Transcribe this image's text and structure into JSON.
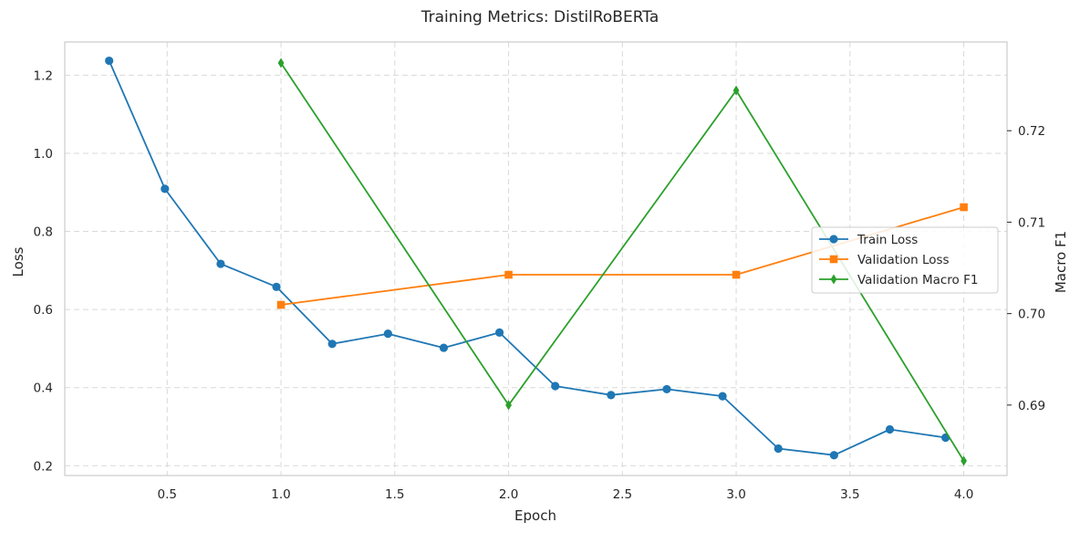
{
  "chart_data": {
    "type": "line",
    "title": "Training Metrics: DistilRoBERTa",
    "xlabel": "Epoch",
    "ylabel": "Loss",
    "y2label": "Macro F1",
    "xlim": [
      0.05,
      4.19
    ],
    "ylim": [
      0.175,
      1.285
    ],
    "y2lim": [
      0.6823,
      0.7297
    ],
    "xticks": [
      0.5,
      1.0,
      1.5,
      2.0,
      2.5,
      3.0,
      3.5,
      4.0
    ],
    "xtick_labels": [
      "0.5",
      "1.0",
      "1.5",
      "2.0",
      "2.5",
      "3.0",
      "3.5",
      "4.0"
    ],
    "yticks": [
      0.2,
      0.4,
      0.6,
      0.8,
      1.0,
      1.2
    ],
    "ytick_labels": [
      "0.2",
      "0.4",
      "0.6",
      "0.8",
      "1.0",
      "1.2"
    ],
    "y2ticks": [
      0.69,
      0.7,
      0.71,
      0.72
    ],
    "y2tick_labels": [
      "0.69",
      "0.70",
      "0.71",
      "0.72"
    ],
    "grid": true,
    "legend_position": "center-right",
    "series": [
      {
        "name": "Train Loss",
        "axis": "left",
        "marker": "circle",
        "color": "#1f77b4",
        "x": [
          0.245,
          0.49,
          0.735,
          0.98,
          1.225,
          1.47,
          1.715,
          1.96,
          2.205,
          2.45,
          2.695,
          2.94,
          3.185,
          3.43,
          3.675,
          3.92
        ],
        "values": [
          1.237,
          0.909,
          0.717,
          0.658,
          0.512,
          0.538,
          0.502,
          0.541,
          0.404,
          0.381,
          0.396,
          0.378,
          0.244,
          0.227,
          0.293,
          0.272
        ]
      },
      {
        "name": "Validation Loss",
        "axis": "left",
        "marker": "square",
        "color": "#ff7f0e",
        "x": [
          1.0,
          2.0,
          3.0,
          4.0
        ],
        "values": [
          0.612,
          0.689,
          0.689,
          0.862
        ]
      },
      {
        "name": "Validation Macro F1",
        "axis": "right",
        "marker": "diamond",
        "color": "#2ca02c",
        "x": [
          1.0,
          2.0,
          3.0,
          4.0
        ],
        "values": [
          0.7274,
          0.69,
          0.7244,
          0.6839
        ]
      }
    ]
  }
}
